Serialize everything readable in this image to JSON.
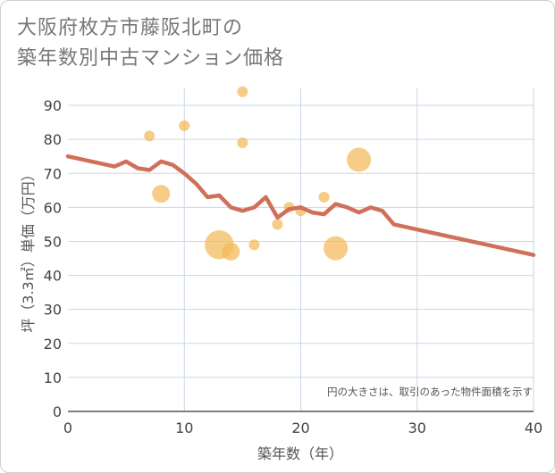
{
  "title_lines": [
    "大阪府枚方市藤阪北町の",
    "築年数別中古マンション価格"
  ],
  "chart_data": {
    "type": "scatter+line",
    "title": "大阪府枚方市藤阪北町の築年数別中古マンション価格",
    "xlabel": "築年数（年）",
    "ylabel": "坪（3.3㎡）単価（万円）",
    "xlim": [
      0,
      40
    ],
    "ylim": [
      0,
      95
    ],
    "x_ticks": [
      0,
      10,
      20,
      30,
      40
    ],
    "y_ticks": [
      0,
      10,
      20,
      30,
      40,
      50,
      60,
      70,
      80,
      90
    ],
    "grid": true,
    "note": "円の大きさは、取引のあった物件面積を示す",
    "bubble_color": "#f2b857",
    "line_color": "#d0705a",
    "scatter": [
      {
        "x": 7,
        "y": 81,
        "size": 1
      },
      {
        "x": 8,
        "y": 64,
        "size": 2
      },
      {
        "x": 10,
        "y": 84,
        "size": 1
      },
      {
        "x": 13,
        "y": 49,
        "size": 6
      },
      {
        "x": 14,
        "y": 47,
        "size": 2
      },
      {
        "x": 15,
        "y": 94,
        "size": 1
      },
      {
        "x": 15,
        "y": 79,
        "size": 1
      },
      {
        "x": 16,
        "y": 49,
        "size": 1
      },
      {
        "x": 18,
        "y": 55,
        "size": 1
      },
      {
        "x": 19,
        "y": 60,
        "size": 1
      },
      {
        "x": 20,
        "y": 59,
        "size": 1
      },
      {
        "x": 22,
        "y": 63,
        "size": 1
      },
      {
        "x": 23,
        "y": 48,
        "size": 4
      },
      {
        "x": 25,
        "y": 74,
        "size": 4
      }
    ],
    "trend": {
      "x": [
        0,
        4,
        5,
        6,
        7,
        8,
        9,
        10,
        11,
        12,
        13,
        14,
        15,
        16,
        17,
        18,
        19,
        20,
        21,
        22,
        23,
        24,
        25,
        26,
        27,
        28,
        40
      ],
      "y": [
        75,
        72,
        73.5,
        71.5,
        71,
        73.5,
        72.5,
        70,
        67,
        63,
        63.5,
        60,
        59,
        60,
        63,
        57,
        59.5,
        60,
        58.5,
        58,
        61,
        60,
        58.5,
        60,
        59,
        55,
        46
      ]
    }
  }
}
